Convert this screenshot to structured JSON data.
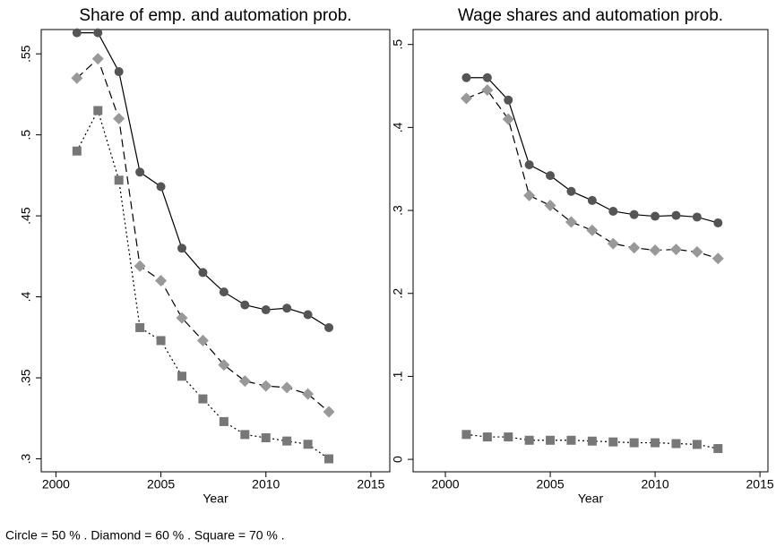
{
  "chart_data": [
    {
      "type": "line",
      "title": "Share of emp. and automation prob.",
      "x_label": "Year",
      "x": [
        2001,
        2002,
        2003,
        2004,
        2005,
        2006,
        2007,
        2008,
        2009,
        2010,
        2011,
        2012,
        2013
      ],
      "xlim": [
        1999.3,
        2015.9
      ],
      "xticks": [
        2000,
        2005,
        2010,
        2015
      ],
      "ylim": [
        0.292,
        0.565
      ],
      "yticks": [
        {
          "value": 0.3,
          "label": ".3"
        },
        {
          "value": 0.35,
          "label": ".35"
        },
        {
          "value": 0.4,
          "label": ".4"
        },
        {
          "value": 0.45,
          "label": ".45"
        },
        {
          "value": 0.5,
          "label": ".5"
        },
        {
          "value": 0.55,
          "label": ".55"
        }
      ],
      "series": [
        {
          "marker": "circle",
          "color": "#555555",
          "dash": "solid",
          "values": [
            0.563,
            0.563,
            0.539,
            0.477,
            0.468,
            0.43,
            0.415,
            0.403,
            0.395,
            0.392,
            0.393,
            0.389,
            0.381
          ]
        },
        {
          "marker": "diamond",
          "color": "#999999",
          "dash": "dashed",
          "values": [
            0.535,
            0.547,
            0.51,
            0.419,
            0.41,
            0.387,
            0.373,
            0.358,
            0.348,
            0.345,
            0.344,
            0.34,
            0.329
          ]
        },
        {
          "marker": "square",
          "color": "#777777",
          "dash": "dotted",
          "values": [
            0.49,
            0.515,
            0.472,
            0.381,
            0.373,
            0.351,
            0.337,
            0.323,
            0.315,
            0.313,
            0.311,
            0.309,
            0.3
          ]
        }
      ]
    },
    {
      "type": "line",
      "title": "Wage shares and automation prob.",
      "x_label": "Year",
      "x": [
        2001,
        2002,
        2003,
        2004,
        2005,
        2006,
        2007,
        2008,
        2009,
        2010,
        2011,
        2012,
        2013
      ],
      "xlim": [
        1998.46,
        2015.38
      ],
      "xticks": [
        2000,
        2005,
        2010,
        2015
      ],
      "ylim": [
        -0.015,
        0.518
      ],
      "yticks": [
        0,
        {
          "value": 0.1,
          "label": ".1"
        },
        {
          "value": 0.2,
          "label": ".2"
        },
        {
          "value": 0.3,
          "label": ".3"
        },
        {
          "value": 0.4,
          "label": ".4"
        },
        {
          "value": 0.5,
          "label": ".5"
        }
      ],
      "series": [
        {
          "marker": "circle",
          "color": "#555555",
          "dash": "solid",
          "values": [
            0.46,
            0.46,
            0.433,
            0.355,
            0.342,
            0.323,
            0.312,
            0.299,
            0.295,
            0.293,
            0.294,
            0.292,
            0.285
          ]
        },
        {
          "marker": "diamond",
          "color": "#999999",
          "dash": "dashed",
          "values": [
            0.435,
            0.445,
            0.41,
            0.318,
            0.306,
            0.286,
            0.276,
            0.26,
            0.255,
            0.252,
            0.253,
            0.25,
            0.242
          ]
        },
        {
          "marker": "square",
          "color": "#777777",
          "dash": "dotted",
          "values": [
            0.03,
            0.027,
            0.027,
            0.023,
            0.023,
            0.023,
            0.022,
            0.021,
            0.02,
            0.02,
            0.019,
            0.018,
            0.013
          ]
        }
      ]
    }
  ],
  "note": "Circle = 50 % . Diamond = 60 % . Square = 70 % ."
}
